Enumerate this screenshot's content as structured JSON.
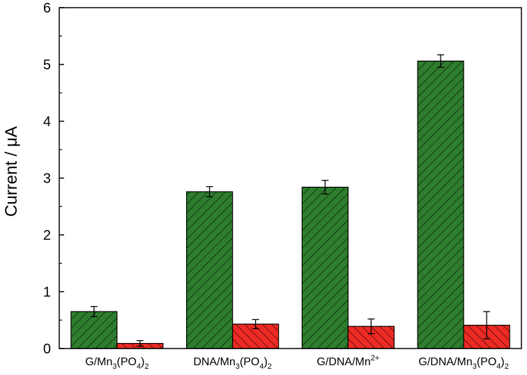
{
  "chart_data": {
    "type": "bar",
    "title": "",
    "xlabel": "",
    "ylabel": "Current / μA",
    "ylim": [
      0,
      6
    ],
    "yticks": [
      "0",
      "1",
      "2",
      "3",
      "4",
      "5",
      "6"
    ],
    "grid": false,
    "legend": "none",
    "categories": [
      {
        "base": "G/Mn",
        "sub1": "3",
        "mid": "(PO",
        "sub2": "4",
        "tail": ")",
        "sub3": "2"
      },
      {
        "base": "DNA/Mn",
        "sub1": "3",
        "mid": "(PO",
        "sub2": "4",
        "tail": ")",
        "sub3": "2"
      },
      {
        "base": "G/DNA/Mn",
        "sup": "2+"
      },
      {
        "base": "G/DNA/Mn",
        "sub1": "3",
        "mid": "(PO",
        "sub2": "4",
        "tail": ")",
        "sub3": "2"
      }
    ],
    "series": [
      {
        "color": "#2e7d2e",
        "hatch": "forward",
        "values": [
          0.65,
          2.76,
          2.84,
          5.06
        ],
        "errors": [
          0.09,
          0.09,
          0.12,
          0.11
        ]
      },
      {
        "color": "#ee2a24",
        "hatch": "back",
        "values": [
          0.09,
          0.43,
          0.39,
          0.41
        ],
        "errors": [
          0.05,
          0.08,
          0.13,
          0.24
        ]
      }
    ]
  }
}
